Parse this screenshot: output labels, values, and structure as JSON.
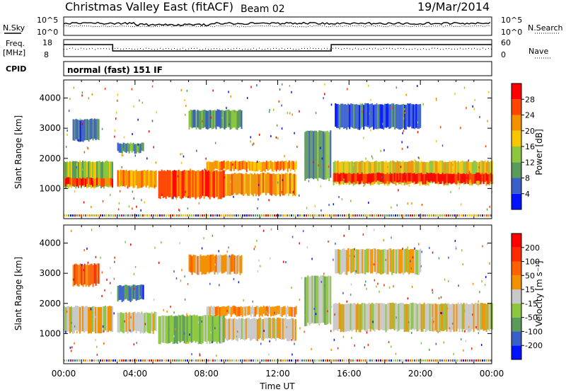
{
  "header": {
    "title": "Christmas Valley East (fitACF)",
    "beam": "Beam 02",
    "date": "19/Mar/2014"
  },
  "noise_panel": {
    "left_label": "N.Sky",
    "left_ticks": [
      "10^5",
      "10^0"
    ],
    "right_label": "N.Search",
    "right_ticks": [
      "10^5",
      "10^0"
    ],
    "series_sky": "solid",
    "series_search": "dotted"
  },
  "freq_panel": {
    "left_label_1": "Freq.",
    "left_label_2": "[MHz]",
    "left_ticks": [
      "18",
      "8"
    ],
    "right_label": "Nave",
    "right_ticks": [
      "60",
      "0"
    ],
    "freq_steps": [
      {
        "x0": 0.0,
        "x1": 2.75,
        "level": "high"
      },
      {
        "x0": 2.75,
        "x1": 15.0,
        "level": "low"
      },
      {
        "x0": 15.0,
        "x1": 24.0,
        "level": "high"
      }
    ]
  },
  "cpid": {
    "label": "CPID",
    "text": "normal (fast) 151 IF"
  },
  "chart_data": [
    {
      "type": "heatmap",
      "name": "power",
      "ylabel": "Slant Range [km]",
      "xlabel": "",
      "xlim": [
        0,
        24
      ],
      "ylim": [
        0,
        4600
      ],
      "yticks": [
        "1000",
        "2000",
        "3000",
        "4000"
      ],
      "ytick_values": [
        1000,
        2000,
        3000,
        4000
      ],
      "colorbar": {
        "label": "Power [dB]",
        "ticks": [
          "4",
          "8",
          "12",
          "16",
          "20",
          "24",
          "28"
        ],
        "tick_values": [
          4,
          8,
          12,
          16,
          20,
          24,
          28
        ],
        "range": [
          0,
          32
        ],
        "colors": [
          "#0012ff",
          "#3a5fc9",
          "#5a9a5a",
          "#8cc63f",
          "#f7c600",
          "#f39200",
          "#ff4500",
          "#ff0000"
        ]
      },
      "echo_regions": [
        {
          "t0": 0.0,
          "t1": 2.7,
          "r0": 1050,
          "r1": 1900,
          "level": 3
        },
        {
          "t0": 0.0,
          "t1": 2.7,
          "r0": 1100,
          "r1": 1350,
          "level": 6
        },
        {
          "t0": 0.5,
          "t1": 2.0,
          "r0": 2600,
          "r1": 3300,
          "level": 1
        },
        {
          "t0": 3.0,
          "t1": 5.2,
          "r0": 1050,
          "r1": 1600,
          "level": 5
        },
        {
          "t0": 3.0,
          "t1": 4.5,
          "r0": 2200,
          "r1": 2500,
          "level": 2
        },
        {
          "t0": 5.3,
          "t1": 9.0,
          "r0": 700,
          "r1": 1600,
          "level": 6
        },
        {
          "t0": 9.0,
          "t1": 13.0,
          "r0": 800,
          "r1": 1500,
          "level": 5
        },
        {
          "t0": 8.0,
          "t1": 13.0,
          "r0": 1600,
          "r1": 1900,
          "level": 5
        },
        {
          "t0": 7.0,
          "t1": 10.0,
          "r0": 3000,
          "r1": 3600,
          "level": 2
        },
        {
          "t0": 13.5,
          "t1": 15.0,
          "r0": 1300,
          "r1": 2900,
          "level": 2
        },
        {
          "t0": 15.1,
          "t1": 24.0,
          "r0": 1150,
          "r1": 1900,
          "level": 4
        },
        {
          "t0": 15.1,
          "t1": 24.0,
          "r0": 1200,
          "r1": 1500,
          "level": 7
        },
        {
          "t0": 15.2,
          "t1": 20.0,
          "r0": 3000,
          "r1": 3800,
          "level": 1
        }
      ]
    },
    {
      "type": "heatmap",
      "name": "velocity",
      "ylabel": "Slant Range [km]",
      "xlabel": "Time UT",
      "xlim": [
        0,
        24
      ],
      "ylim": [
        0,
        4600
      ],
      "yticks": [
        "1000",
        "2000",
        "3000",
        "4000"
      ],
      "ytick_values": [
        1000,
        2000,
        3000,
        4000
      ],
      "xticks": [
        "00:00",
        "04:00",
        "08:00",
        "12:00",
        "16:00",
        "20:00",
        "00:00"
      ],
      "xtick_values": [
        0,
        4,
        8,
        12,
        16,
        20,
        24
      ],
      "colorbar": {
        "label": "Velocity [m s⁻¹]",
        "ticks": [
          "200",
          "100",
          "50",
          "15",
          "-15",
          "-50",
          "-100",
          "-200"
        ],
        "colors": [
          "#0012ff",
          "#3a5fc9",
          "#5a9a5a",
          "#8cc63f",
          "#c8c8c8",
          "#f39200",
          "#ff6000",
          "#ff2a00",
          "#ff0000"
        ]
      },
      "echo_regions": [
        {
          "t0": 0.0,
          "t1": 2.7,
          "r0": 1050,
          "r1": 1900,
          "level": 4
        },
        {
          "t0": 0.5,
          "t1": 2.0,
          "r0": 2600,
          "r1": 3300,
          "level": 6
        },
        {
          "t0": 3.0,
          "t1": 5.2,
          "r0": 1050,
          "r1": 1700,
          "level": 4
        },
        {
          "t0": 3.0,
          "t1": 4.5,
          "r0": 2100,
          "r1": 2600,
          "level": 1
        },
        {
          "t0": 5.3,
          "t1": 9.0,
          "r0": 700,
          "r1": 1600,
          "level": 3
        },
        {
          "t0": 9.0,
          "t1": 13.0,
          "r0": 800,
          "r1": 1500,
          "level": 4
        },
        {
          "t0": 8.0,
          "t1": 13.0,
          "r0": 1600,
          "r1": 1900,
          "level": 5
        },
        {
          "t0": 7.0,
          "t1": 10.0,
          "r0": 3000,
          "r1": 3600,
          "level": 5
        },
        {
          "t0": 13.5,
          "t1": 15.0,
          "r0": 1300,
          "r1": 2900,
          "level": 3
        },
        {
          "t0": 15.1,
          "t1": 24.0,
          "r0": 1100,
          "r1": 2000,
          "level": 4
        },
        {
          "t0": 15.2,
          "t1": 20.0,
          "r0": 3000,
          "r1": 3800,
          "level": 4
        }
      ]
    }
  ]
}
